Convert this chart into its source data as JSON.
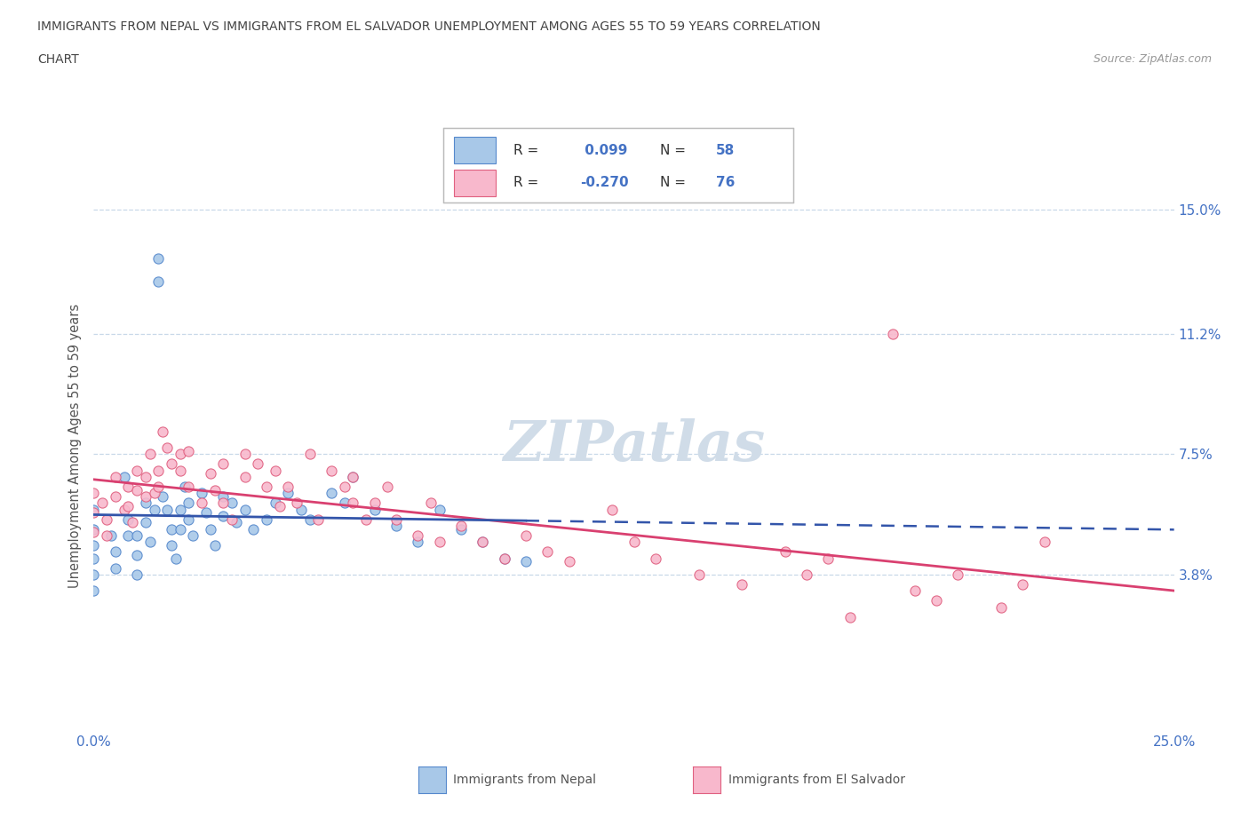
{
  "title_line1": "IMMIGRANTS FROM NEPAL VS IMMIGRANTS FROM EL SALVADOR UNEMPLOYMENT AMONG AGES 55 TO 59 YEARS CORRELATION",
  "title_line2": "CHART",
  "source_text": "Source: ZipAtlas.com",
  "ylabel": "Unemployment Among Ages 55 to 59 years",
  "xlim": [
    0.0,
    0.25
  ],
  "ylim": [
    -0.01,
    0.165
  ],
  "ytick_positions": [
    0.038,
    0.075,
    0.112,
    0.15
  ],
  "ytick_labels": [
    "3.8%",
    "7.5%",
    "11.2%",
    "15.0%"
  ],
  "nepal_color": "#a8c8e8",
  "nepal_edge_color": "#5588cc",
  "nepal_line_color": "#3355aa",
  "salvador_color": "#f8b8cc",
  "salvador_edge_color": "#e06080",
  "salvador_line_color": "#d94070",
  "legend_nepal_label": "Immigrants from Nepal",
  "legend_salvador_label": "Immigrants from El Salvador",
  "R_nepal": 0.099,
  "N_nepal": 58,
  "R_salvador": -0.27,
  "N_salvador": 76,
  "background_color": "#ffffff",
  "grid_color": "#c8d8e8",
  "title_color": "#444444",
  "axis_label_color": "#555555",
  "tick_label_color": "#4472c4",
  "watermark_color": "#d0dce8"
}
